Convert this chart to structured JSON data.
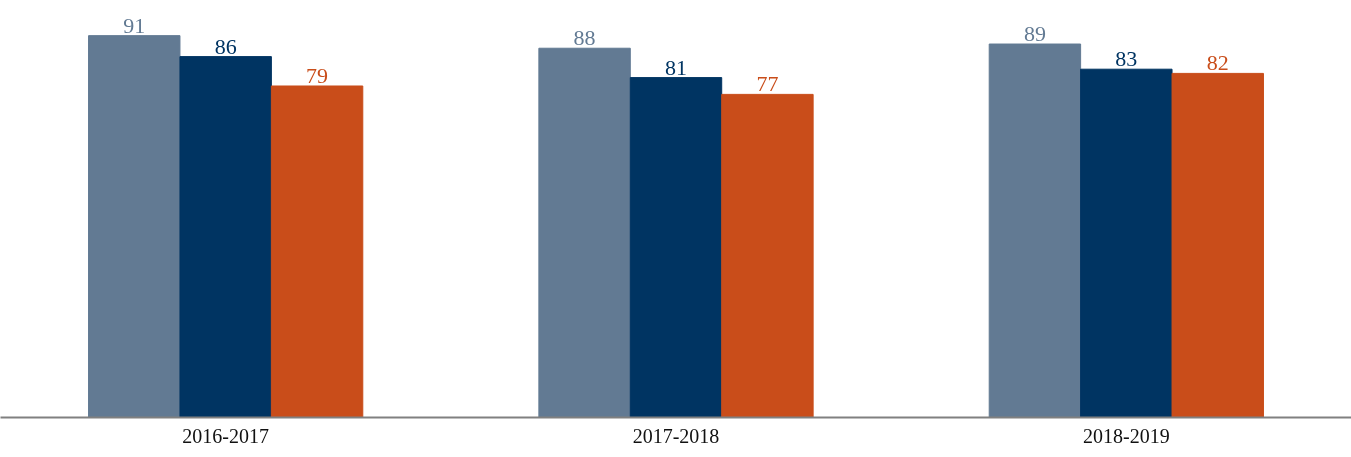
{
  "chart_data": {
    "type": "bar",
    "categories": [
      "2016-2017",
      "2017-2018",
      "2018-2019"
    ],
    "series": [
      {
        "color": "#627a93",
        "values": [
          91,
          88,
          89
        ]
      },
      {
        "color": "#003462",
        "values": [
          86,
          81,
          83
        ]
      },
      {
        "color": "#c94d1a",
        "values": [
          79,
          77,
          82
        ]
      }
    ],
    "data_labels": true,
    "grid": false
  }
}
